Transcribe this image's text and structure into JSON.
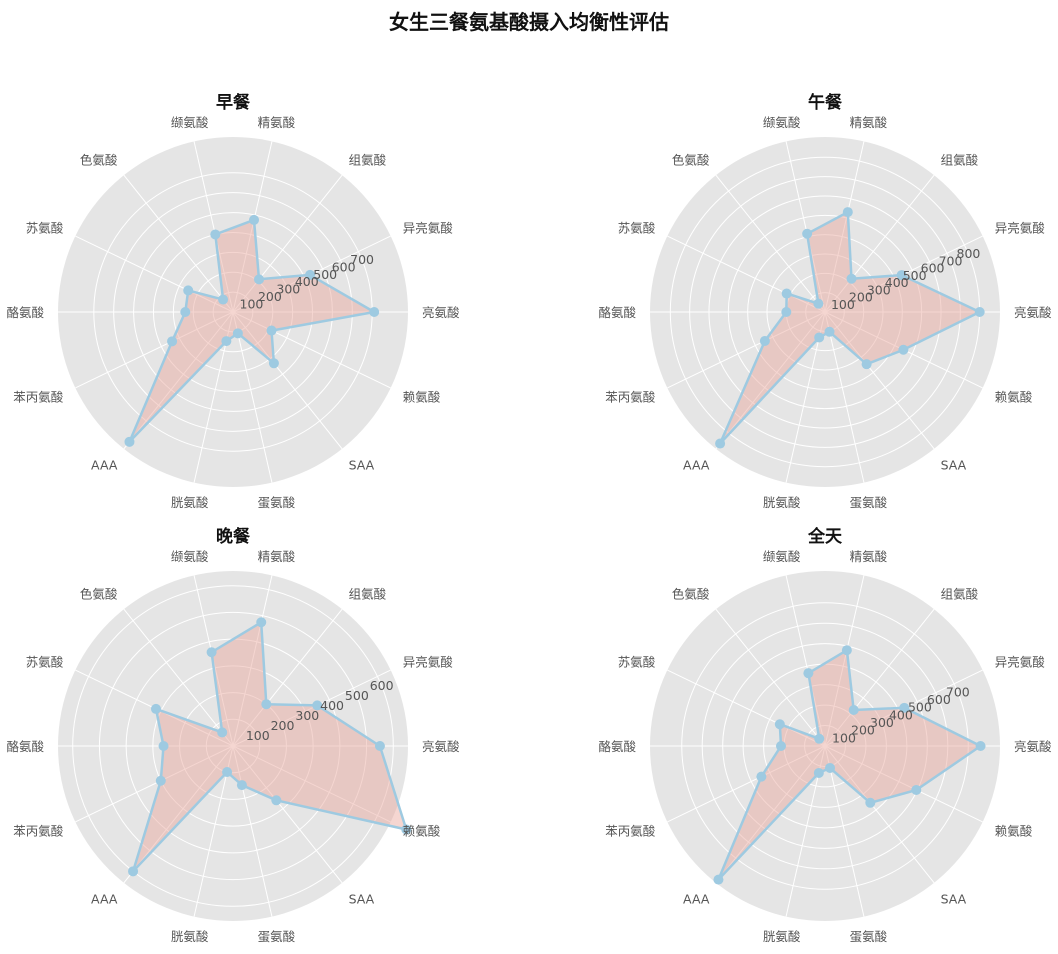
{
  "figure": {
    "title": "女生三餐氨基酸摄入均衡性评估"
  },
  "style": {
    "background": "#E5E5E5",
    "grid": "#FFFFFF",
    "line_color": "#9ECAE1",
    "fill_color": "#E8A498",
    "text_color": "#555555"
  },
  "chart_data": [
    {
      "type": "radar",
      "title": "早餐",
      "axes": [
        "亮氨酸",
        "异亮氨酸",
        "组氨酸",
        "精氨酸",
        "缬氨酸",
        "色氨酸",
        "苏氨酸",
        "酪氨酸",
        "苯丙氨酸",
        "AAA",
        "胱氨酸",
        "蛋氨酸",
        "SAA",
        "赖氨酸"
      ],
      "values": [
        710,
        430,
        210,
        475,
        400,
        80,
        250,
        240,
        340,
        835,
        150,
        110,
        330,
        215
      ],
      "ticks": [
        100,
        200,
        300,
        400,
        500,
        600,
        700
      ],
      "rmax": 880,
      "grid": true
    },
    {
      "type": "radar",
      "title": "午餐",
      "axes": [
        "亮氨酸",
        "异亮氨酸",
        "组氨酸",
        "精氨酸",
        "缬氨酸",
        "色氨酸",
        "苏氨酸",
        "酪氨酸",
        "苯丙氨酸",
        "AAA",
        "胱氨酸",
        "蛋氨酸",
        "SAA",
        "赖氨酸"
      ],
      "values": [
        800,
        440,
        220,
        530,
        415,
        55,
        220,
        200,
        345,
        870,
        135,
        105,
        345,
        450
      ],
      "ticks": [
        100,
        200,
        300,
        400,
        500,
        600,
        700,
        800
      ],
      "rmax": 905,
      "grid": true
    },
    {
      "type": "radar",
      "title": "晚餐",
      "axes": [
        "亮氨酸",
        "异亮氨酸",
        "组氨酸",
        "精氨酸",
        "缬氨酸",
        "色氨酸",
        "苏氨酸",
        "酪氨酸",
        "苯丙氨酸",
        "AAA",
        "胱氨酸",
        "蛋氨酸",
        "SAA",
        "赖氨酸"
      ],
      "values": [
        550,
        350,
        200,
        475,
        360,
        65,
        320,
        260,
        300,
        600,
        100,
        150,
        260,
        720
      ],
      "ticks": [
        100,
        200,
        300,
        400,
        500,
        600
      ],
      "rmax": 655,
      "grid": true
    },
    {
      "type": "radar",
      "title": "全天",
      "axes": [
        "亮氨酸",
        "异亮氨酸",
        "组氨酸",
        "精氨酸",
        "缬氨酸",
        "色氨酸",
        "苏氨酸",
        "酪氨酸",
        "苯丙氨酸",
        "AAA",
        "胱氨酸",
        "蛋氨酸",
        "SAA",
        "赖氨酸"
      ],
      "values": [
        760,
        430,
        225,
        480,
        365,
        45,
        245,
        215,
        345,
        835,
        135,
        110,
        355,
        495
      ],
      "ticks": [
        100,
        200,
        300,
        400,
        500,
        600,
        700
      ],
      "rmax": 855,
      "grid": true
    }
  ]
}
